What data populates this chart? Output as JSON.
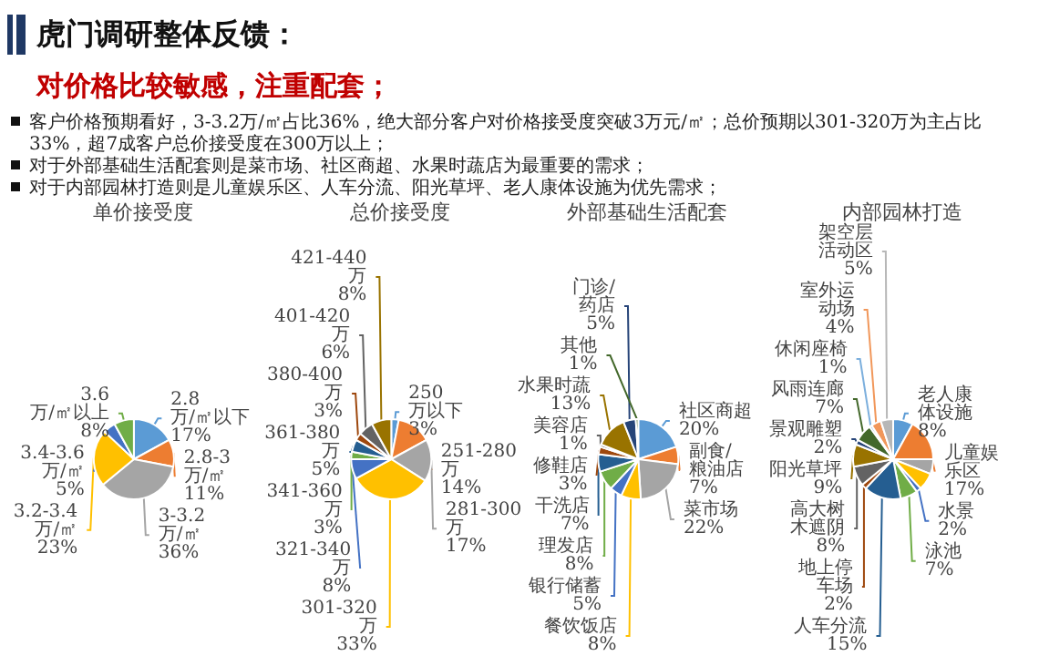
{
  "chart_data": [
    {
      "type": "pie",
      "title": "单价接受度",
      "annotations": [
        "虎门调研整体反馈：",
        "对价格比较敏感，注重配套；",
        "客户价格预期看好，3-3.2万/㎡占比36%，绝大部分客户对价格接受度突破3万元/㎡；总价预期以301-320万为主占比33%，超7成客户总价接受度在300万以上；",
        "对于外部基础生活配套则是菜市场、社区商超、水果时蔬店为最重要的需求；",
        "对于内部园林打造则是儿童娱乐区、人车分流、阳光草坪、老人康体设施为优先需求；"
      ],
      "categories": [
        "2.8万/㎡以下",
        "2.8-3万/㎡",
        "3-3.2万/㎡",
        "3.2-3.4万/㎡",
        "3.4-3.6万/㎡",
        "3.6万/㎡以上"
      ],
      "values": [
        17,
        11,
        36,
        23,
        5,
        8
      ],
      "value_labels": [
        "17%",
        "11%",
        "36%",
        "23%",
        "5%",
        "8%"
      ],
      "colors": [
        "#5b9bd5",
        "#ed7d31",
        "#a5a5a5",
        "#ffc000",
        "#4472c4",
        "#70ad47"
      ]
    },
    {
      "type": "pie",
      "title": "总价接受度",
      "categories": [
        "250万以下",
        "251-280万",
        "281-300万",
        "301-320万",
        "321-340万",
        "341-360万",
        "361-380万",
        "380-400万",
        "401-420万",
        "421-440万"
      ],
      "values": [
        3,
        14,
        17,
        33,
        8,
        3,
        5,
        3,
        6,
        8
      ],
      "value_labels": [
        "3%",
        "14%",
        "17%",
        "33%",
        "8%",
        "3%",
        "5%",
        "3%",
        "6%",
        "8%"
      ],
      "colors": [
        "#5b9bd5",
        "#ed7d31",
        "#a5a5a5",
        "#ffc000",
        "#4472c4",
        "#70ad47",
        "#255e91",
        "#9e480e",
        "#636363",
        "#997300"
      ]
    },
    {
      "type": "pie",
      "title": "外部基础生活配套",
      "categories": [
        "社区商超",
        "副食/粮油店",
        "菜市场",
        "餐饮饭店",
        "银行储蓄",
        "理发店",
        "干洗店",
        "修鞋店",
        "美容店",
        "水果时蔬",
        "门诊/药店",
        "其他"
      ],
      "values": [
        20,
        7,
        22,
        8,
        5,
        8,
        7,
        3,
        1,
        13,
        5,
        1
      ],
      "value_labels": [
        "20%",
        "7%",
        "22%",
        "8%",
        "5%",
        "8%",
        "7%",
        "3%",
        "1%",
        "13%",
        "5%",
        "1%"
      ],
      "colors": [
        "#5b9bd5",
        "#ed7d31",
        "#a5a5a5",
        "#ffc000",
        "#4472c4",
        "#70ad47",
        "#255e91",
        "#9e480e",
        "#636363",
        "#997300",
        "#264478",
        "#43682b"
      ]
    },
    {
      "type": "pie",
      "title": "内部园林打造",
      "categories": [
        "老人康体设施",
        "儿童娱乐区",
        null,
        null,
        "水景",
        "泳池",
        "人车分流",
        "地上停车场",
        "高大树木遮阴",
        "阳光草坪",
        "景观雕塑",
        "风雨连廊",
        "休闲座椅",
        "室外运动场",
        "架空层活动区"
      ],
      "values": [
        8,
        17,
        6,
        7,
        2,
        7,
        15,
        2,
        8,
        9,
        2,
        7,
        1,
        4,
        5
      ],
      "value_labels": [
        "8%",
        "17%",
        null,
        null,
        "2%",
        "7%",
        "15%",
        "2%",
        "8%",
        "9%",
        "2%",
        "7%",
        "1%",
        "4%",
        "5%"
      ],
      "colors": [
        "#5b9bd5",
        "#ed7d31",
        "#a5a5a5",
        "#ffc000",
        "#4472c4",
        "#70ad47",
        "#255e91",
        "#9e480e",
        "#636363",
        "#997300",
        "#264478",
        "#43682b",
        "#7cafdd",
        "#f1975a",
        "#b7b7b7"
      ]
    }
  ]
}
